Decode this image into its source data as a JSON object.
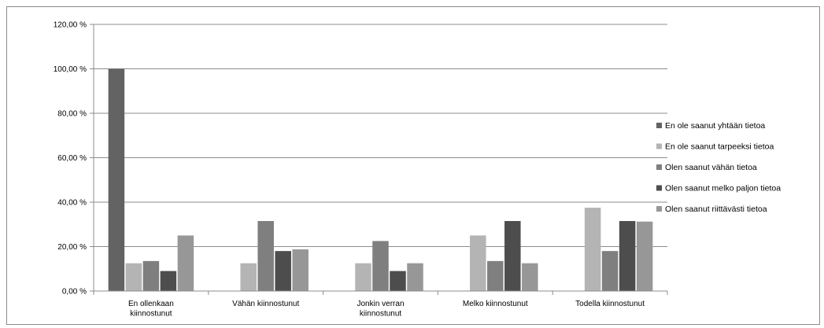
{
  "chart_data": {
    "type": "bar",
    "title": "",
    "xlabel": "",
    "ylabel": "",
    "ylim": [
      0,
      120
    ],
    "yticks": [
      "0,00 %",
      "20,00 %",
      "40,00 %",
      "60,00 %",
      "80,00 %",
      "100,00 %",
      "120,00 %"
    ],
    "grid": "horizontal",
    "legend_position": "right",
    "categories": [
      [
        "En ollenkaan",
        "kiinnostunut"
      ],
      [
        "Vähän kiinnostunut"
      ],
      [
        "Jonkin verran",
        "kiinnostunut"
      ],
      [
        "Melko kiinnostunut"
      ],
      [
        "Todella kiinnostunut"
      ]
    ],
    "series": [
      {
        "name": "En ole saanut yhtään tietoa",
        "color": "#636363",
        "values": [
          100,
          0,
          0,
          0,
          0
        ]
      },
      {
        "name": "En ole saanut tarpeeksi tietoa",
        "color": "#b4b4b4",
        "values": [
          12.5,
          12.5,
          12.5,
          25,
          37.5
        ]
      },
      {
        "name": "Olen saanut vähän tietoa",
        "color": "#7f7f7f",
        "values": [
          13.5,
          31.5,
          22.5,
          13.5,
          18
        ]
      },
      {
        "name": "Olen saanut melko paljon tietoa",
        "color": "#4d4d4d",
        "values": [
          9,
          18,
          9,
          31.5,
          31.5
        ]
      },
      {
        "name": "Olen saanut riittävästi tietoa",
        "color": "#979797",
        "values": [
          25,
          18.75,
          12.5,
          12.5,
          31.25
        ]
      }
    ]
  }
}
